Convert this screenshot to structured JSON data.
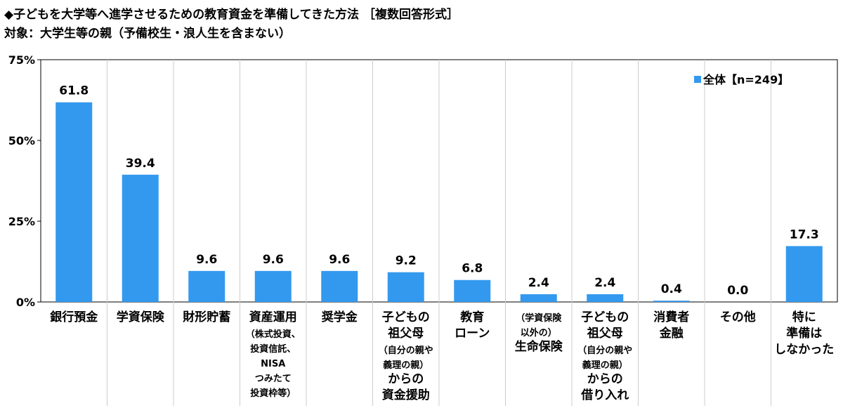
{
  "titles": {
    "line1": "◆子どもを大学等へ進学させるための教育資金を準備してきた方法 ［複数回答形式］",
    "line2": "対象：大学生等の親（予備校生・浪人生を含まない）"
  },
  "chart_data": {
    "type": "bar",
    "title": "",
    "xlabel": "",
    "ylabel": "",
    "ylim": [
      0,
      75
    ],
    "yticks": [
      "0%",
      "25%",
      "50%",
      "75%"
    ],
    "ytick_values": [
      0,
      25,
      50,
      75
    ],
    "grid": false,
    "legend_position": "top-right",
    "categories": [
      [
        "銀行預金"
      ],
      [
        "学資保険"
      ],
      [
        "財形貯蓄"
      ],
      [
        "資産運用",
        "（株式投資、",
        "投資信託、",
        "NISA",
        "つみたて",
        "投資枠等）"
      ],
      [
        "奨学金"
      ],
      [
        "子どもの",
        "祖父母",
        "（自分の親や",
        "義理の親）",
        "からの",
        "資金援助"
      ],
      [
        "教育",
        "ローン"
      ],
      [
        "（学資保険",
        "以外の）",
        "生命保険"
      ],
      [
        "子どもの",
        "祖父母",
        "（自分の親や",
        "義理の親）",
        "からの",
        "借り入れ"
      ],
      [
        "消費者",
        "金融"
      ],
      [
        "その他"
      ],
      [
        "特に",
        "準備は",
        "しなかった"
      ]
    ],
    "series": [
      {
        "name": "全体【n=249】",
        "color": "#3399ee",
        "values": [
          61.8,
          39.4,
          9.6,
          9.6,
          9.6,
          9.2,
          6.8,
          2.4,
          2.4,
          0.4,
          0.0,
          17.3
        ],
        "labels": [
          "61.8",
          "39.4",
          "9.6",
          "9.6",
          "9.6",
          "9.2",
          "6.8",
          "2.4",
          "2.4",
          "0.4",
          "0.0",
          "17.3"
        ]
      }
    ]
  }
}
